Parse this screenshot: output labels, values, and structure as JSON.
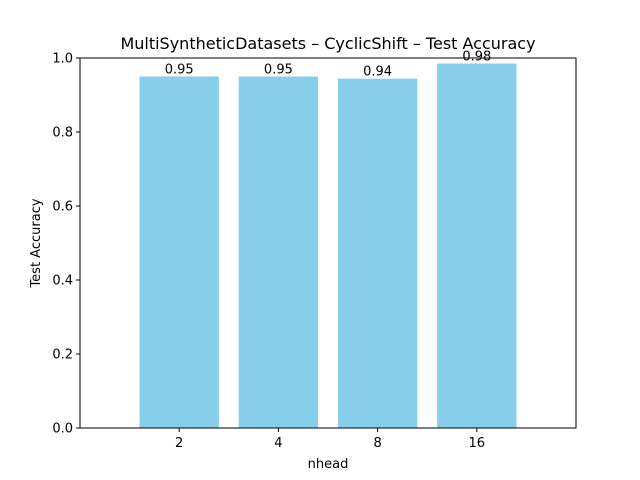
{
  "chart_data": {
    "type": "bar",
    "title": "MultiSyntheticDatasets – CyclicShift – Test Accuracy",
    "xlabel": "nhead",
    "ylabel": "Test Accuracy",
    "categories": [
      "2",
      "4",
      "8",
      "16"
    ],
    "values": [
      0.95,
      0.95,
      0.944,
      0.985
    ],
    "data_labels": [
      "0.95",
      "0.95",
      "0.94",
      "0.98"
    ],
    "ylim": [
      0,
      1.0
    ],
    "yticks": [
      0.0,
      0.2,
      0.4,
      0.6,
      0.8,
      1.0
    ],
    "ytick_labels": [
      "0.0",
      "0.2",
      "0.4",
      "0.6",
      "0.8",
      "1.0"
    ],
    "bar_color": "#87ceeb",
    "grid": false,
    "legend": false
  }
}
